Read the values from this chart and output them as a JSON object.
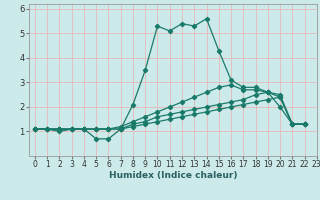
{
  "title": "",
  "xlabel": "Humidex (Indice chaleur)",
  "background_color": "#cceaea",
  "grid_color": "#e8b8b8",
  "line_color": "#1a7a6a",
  "xlim": [
    -0.5,
    23
  ],
  "ylim": [
    0,
    6.2
  ],
  "xticks": [
    0,
    1,
    2,
    3,
    4,
    5,
    6,
    7,
    8,
    9,
    10,
    11,
    12,
    13,
    14,
    15,
    16,
    17,
    18,
    19,
    20,
    21,
    22,
    23
  ],
  "yticks": [
    1,
    2,
    3,
    4,
    5,
    6
  ],
  "series": [
    [
      1.1,
      1.1,
      1.0,
      1.1,
      1.1,
      0.7,
      0.7,
      1.1,
      2.1,
      3.5,
      5.3,
      5.1,
      5.4,
      5.3,
      5.6,
      4.3,
      3.1,
      2.8,
      2.8,
      2.6,
      2.0,
      1.3,
      1.3
    ],
    [
      1.1,
      1.1,
      1.1,
      1.1,
      1.1,
      1.1,
      1.1,
      1.1,
      1.3,
      1.4,
      1.6,
      1.7,
      1.8,
      1.9,
      2.0,
      2.1,
      2.2,
      2.3,
      2.5,
      2.6,
      2.5,
      1.3,
      1.3
    ],
    [
      1.1,
      1.1,
      1.1,
      1.1,
      1.1,
      1.1,
      1.1,
      1.1,
      1.2,
      1.3,
      1.4,
      1.5,
      1.6,
      1.7,
      1.8,
      1.9,
      2.0,
      2.1,
      2.2,
      2.3,
      2.4,
      1.3,
      1.3
    ],
    [
      1.1,
      1.1,
      1.1,
      1.1,
      1.1,
      1.1,
      1.1,
      1.2,
      1.4,
      1.6,
      1.8,
      2.0,
      2.2,
      2.4,
      2.6,
      2.8,
      2.9,
      2.7,
      2.7,
      2.6,
      2.4,
      1.3,
      1.3
    ]
  ],
  "x_values": [
    0,
    1,
    2,
    3,
    4,
    5,
    6,
    7,
    8,
    9,
    10,
    11,
    12,
    13,
    14,
    15,
    16,
    17,
    18,
    19,
    20,
    21,
    22
  ],
  "xlabel_color": "#2a6060",
  "xlabel_fontsize": 6.5,
  "tick_fontsize": 5.5,
  "marker_size": 2.2,
  "linewidth": 0.9
}
